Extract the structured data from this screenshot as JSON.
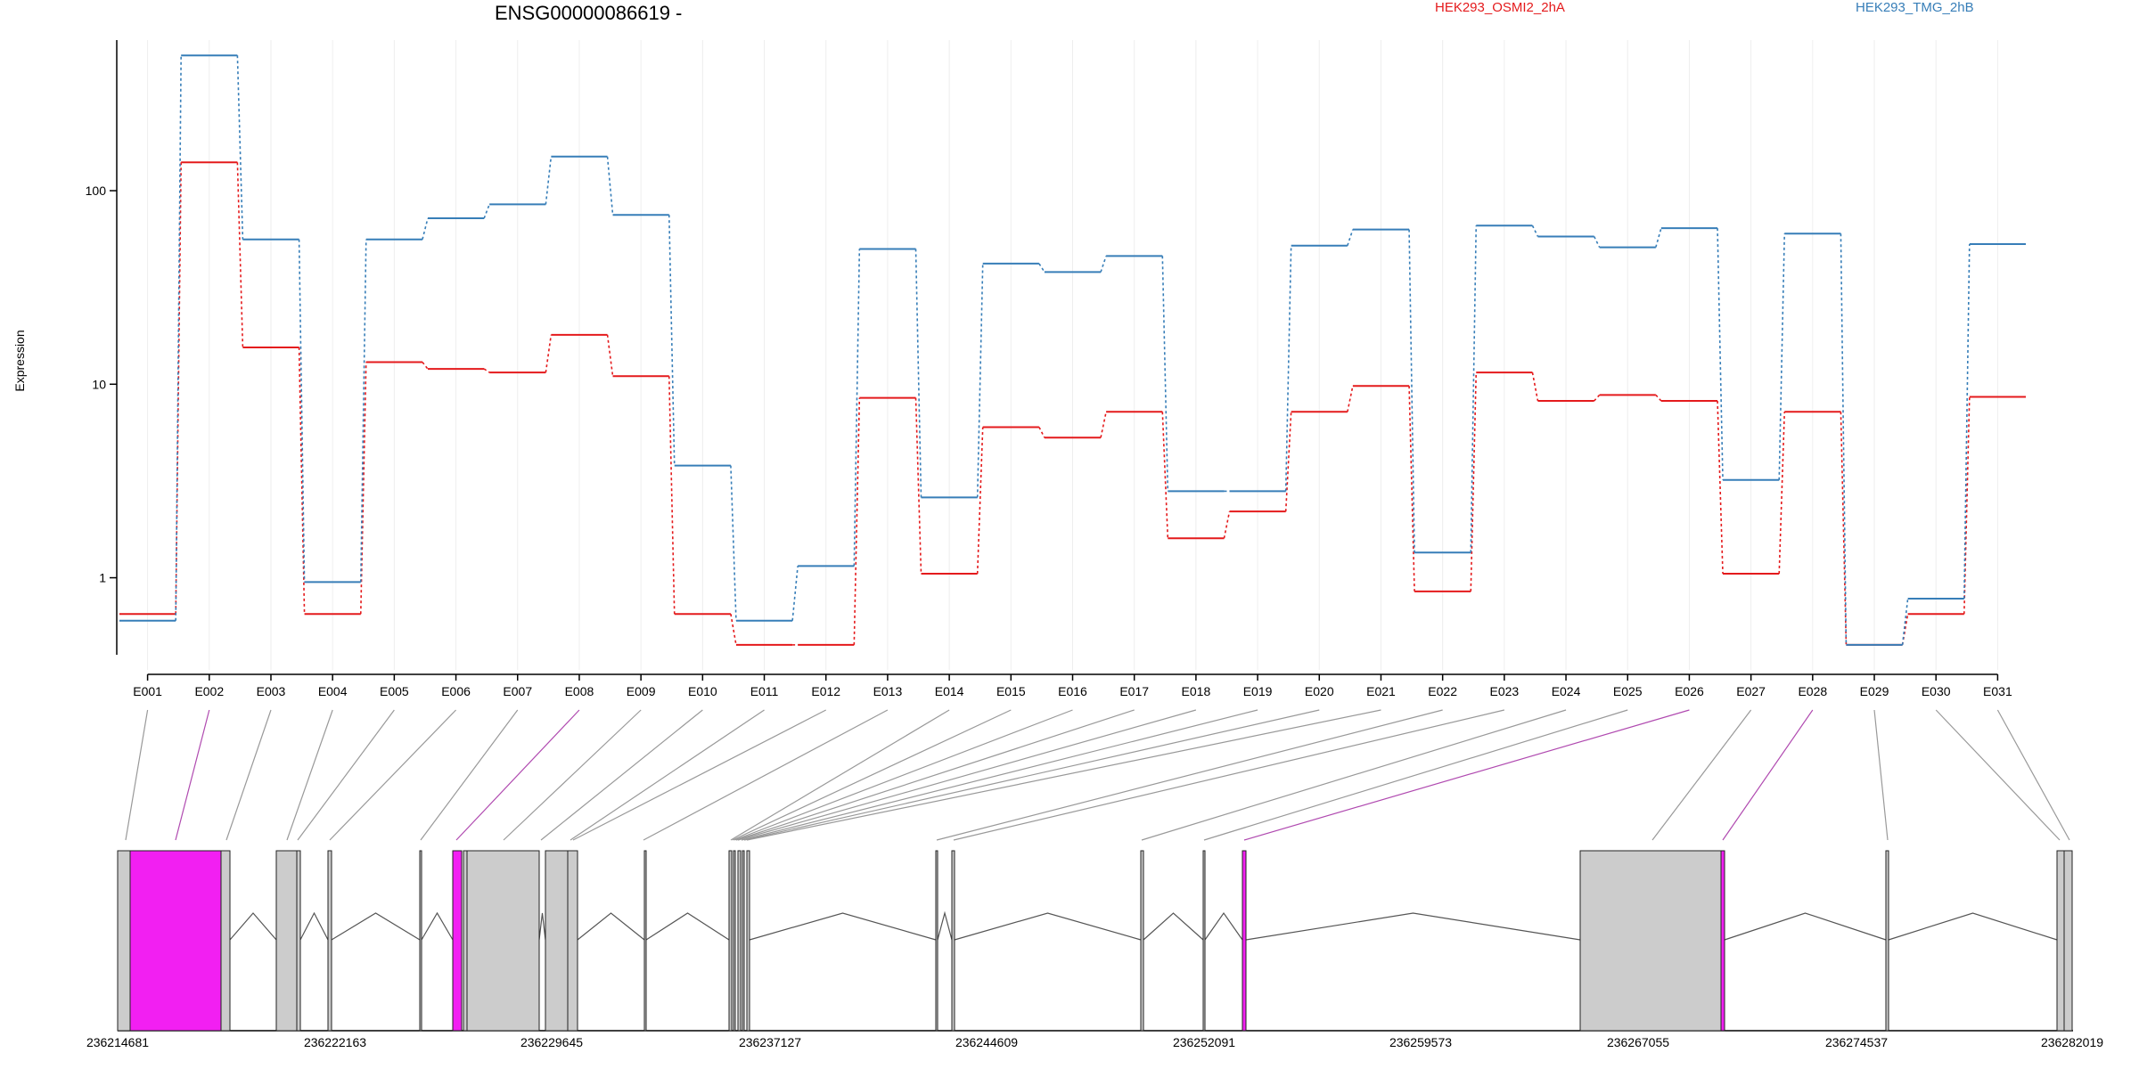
{
  "chart_data": {
    "type": "line",
    "title": "ENSG00000086619 -",
    "ylabel": "Expression",
    "xlabel": "",
    "yscale": "log",
    "ylim": [
      0.4,
      600
    ],
    "yticks": [
      1,
      10,
      100
    ],
    "grid": "vertical-only",
    "legend_position": "top",
    "categories": [
      "E001",
      "E002",
      "E003",
      "E004",
      "E005",
      "E006",
      "E007",
      "E008",
      "E009",
      "E010",
      "E011",
      "E012",
      "E013",
      "E014",
      "E015",
      "E016",
      "E017",
      "E018",
      "E019",
      "E020",
      "E021",
      "E022",
      "E023",
      "E024",
      "E025",
      "E026",
      "E027",
      "E028",
      "E029",
      "E030",
      "E031"
    ],
    "series": [
      {
        "name": "HEK293_OSMI2_2hA",
        "color": "#e41a1c",
        "values": [
          0.65,
          140,
          15.5,
          0.65,
          13,
          12,
          11.5,
          18,
          11,
          0.65,
          0.45,
          0.45,
          8.5,
          1.05,
          6,
          5.3,
          7.2,
          1.6,
          2.2,
          7.2,
          9.8,
          0.85,
          11.5,
          8.2,
          8.8,
          8.2,
          1.05,
          7.2,
          0.45,
          0.65,
          8.6
        ]
      },
      {
        "name": "HEK293_TMG_2hB",
        "color": "#377eb8",
        "values": [
          0.6,
          500,
          56,
          0.95,
          56,
          72,
          85,
          150,
          75,
          3.8,
          0.6,
          1.15,
          50,
          2.6,
          42,
          38,
          46,
          2.8,
          2.8,
          52,
          63,
          1.35,
          66,
          58,
          51,
          64,
          3.2,
          60,
          0.45,
          0.78,
          53
        ]
      }
    ],
    "gene_model": {
      "genomic_coordinates": [
        "236214681",
        "236222163",
        "236229645",
        "236237127",
        "236244609",
        "236252091",
        "236259573",
        "236267055",
        "236274537",
        "236282019"
      ],
      "highlight_color": "#f21ff2",
      "exon_color": "#cccccc",
      "highlighted_exons": [
        "E002",
        "E008",
        "E026",
        "E028"
      ]
    }
  }
}
